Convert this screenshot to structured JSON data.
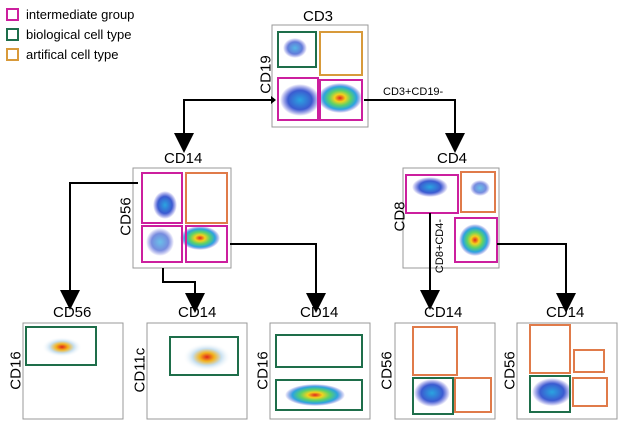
{
  "legend": [
    {
      "label": "intermediate group",
      "color": "#cc1f9e"
    },
    {
      "label": "biological cell type",
      "color": "#1e6e4a"
    },
    {
      "label": "artifical cell type",
      "color": "#d89a3a"
    }
  ],
  "plots": {
    "top": {
      "x_label": "CD3",
      "y_label": "CD19"
    },
    "left_mid": {
      "x_label": "CD14",
      "y_label": "CD56"
    },
    "right_mid": {
      "x_label": "CD4",
      "y_label": "CD8"
    },
    "b1": {
      "x_label": "CD56",
      "y_label": "CD16"
    },
    "b2": {
      "x_label": "CD14",
      "y_label": "CD11c"
    },
    "b3": {
      "x_label": "CD14",
      "y_label": "CD16"
    },
    "b4": {
      "x_label": "CD14",
      "y_label": "CD56"
    },
    "b5": {
      "x_label": "CD14",
      "y_label": "CD56"
    }
  },
  "gates": {
    "cd3_cd19": "CD3+CD19-",
    "cd8_cd4": "CD8+CD4-"
  },
  "colors": {
    "magenta": "#cc1f9e",
    "green": "#1e6e4a",
    "orange": "#e07b4a",
    "arrow": "#000000"
  }
}
